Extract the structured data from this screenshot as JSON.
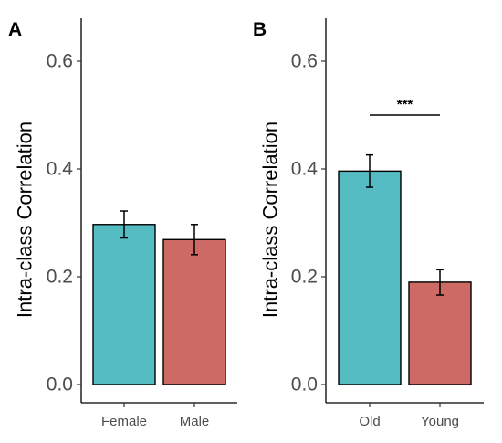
{
  "chart_data": [
    {
      "type": "bar",
      "panel": "A",
      "categories": [
        "Female",
        "Male"
      ],
      "values": [
        0.297,
        0.269
      ],
      "error_lower": [
        0.272,
        0.241
      ],
      "error_upper": [
        0.322,
        0.297
      ],
      "colors": [
        "#56BCC4",
        "#CD6A65"
      ],
      "title": "",
      "xlabel": "",
      "ylabel": "Intra-class Correlation",
      "ylim": [
        0,
        0.68
      ],
      "yticks": [
        "0.0",
        "0.2",
        "0.4",
        "0.6"
      ],
      "grid": false,
      "legend": "none",
      "annotations": []
    },
    {
      "type": "bar",
      "panel": "B",
      "categories": [
        "Old",
        "Young"
      ],
      "values": [
        0.396,
        0.19
      ],
      "error_lower": [
        0.366,
        0.166
      ],
      "error_upper": [
        0.426,
        0.213
      ],
      "colors": [
        "#56BCC4",
        "#CD6A65"
      ],
      "title": "",
      "xlabel": "",
      "ylabel": "Intra-class Correlation",
      "ylim": [
        0,
        0.68
      ],
      "yticks": [
        "0.0",
        "0.2",
        "0.4",
        "0.6"
      ],
      "grid": false,
      "legend": "none",
      "annotations": [
        {
          "text": "***",
          "from": "Old",
          "to": "Young",
          "y": 0.5
        }
      ]
    }
  ]
}
